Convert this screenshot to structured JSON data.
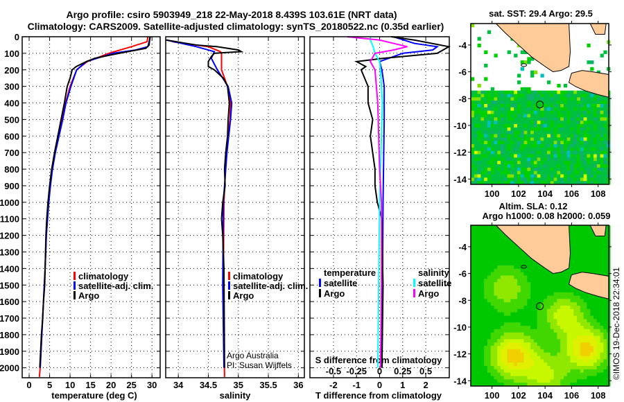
{
  "title": {
    "line1": "Argo profile: csiro 5903949_218 22-May-2018 8.439S 103.61E (NRT data)",
    "line2": "Climatology: CARS2009. Satellite-adjusted climatology: synTS_20180522.nc (0.35d earlier)"
  },
  "colors": {
    "climatology": "#ff0000",
    "satellite": "#0000ff",
    "argo": "#000000",
    "sat_salinity": "#00ffff",
    "argo_salinity": "#ff00ff",
    "land": "#ffcc99"
  },
  "credits": {
    "line1": "Argo Australia",
    "line2": "PI: Susan Wijffels",
    "imos": "©IMOS 19-Dec-2018 22:34:01"
  },
  "chart_data": [
    {
      "type": "line",
      "name": "temperature-profile",
      "xlabel": "temperature (deg C)",
      "ylabel": "depth",
      "xlim": [
        -1.7,
        32
      ],
      "ylim": [
        0,
        2060
      ],
      "xticks": [
        0,
        5,
        10,
        15,
        20,
        25,
        30
      ],
      "yticks": [
        0,
        100,
        200,
        300,
        400,
        500,
        600,
        700,
        800,
        900,
        1000,
        1100,
        1200,
        1300,
        1400,
        1500,
        1600,
        1700,
        1800,
        1900,
        2000
      ],
      "grid": true,
      "legend": [
        "climatology",
        "satellite-adj. clim.",
        "Argo"
      ],
      "series": [
        {
          "name": "climatology",
          "color": "#ff0000",
          "depth": [
            0,
            30,
            60,
            100,
            150,
            200,
            300,
            400,
            500,
            600,
            700,
            800,
            900,
            1000,
            1200,
            1400,
            1600,
            1800,
            2000,
            2055
          ],
          "values": [
            29,
            28.8,
            25,
            19.5,
            14.2,
            11.6,
            10,
            8.9,
            8,
            7.1,
            6.3,
            5.6,
            5.1,
            4.7,
            4.2,
            3.9,
            3.5,
            3.1,
            2.7,
            2.5
          ]
        },
        {
          "name": "satellite-adj. clim.",
          "color": "#0000ff",
          "depth": [
            0,
            60,
            80,
            100,
            150,
            200,
            300,
            400,
            500,
            600,
            700,
            800,
            900,
            1000,
            1200,
            1400,
            1600,
            1800,
            2000
          ],
          "values": [
            29.6,
            29,
            26,
            20.5,
            14,
            11.6,
            10.2,
            9,
            8.2,
            7.3,
            6.4,
            5.7,
            5.2,
            4.8,
            4.2,
            3.9,
            3.5,
            3.1,
            2.7
          ]
        },
        {
          "name": "Argo",
          "color": "#000000",
          "depth": [
            0,
            50,
            70,
            100,
            130,
            150,
            180,
            200,
            250,
            300,
            400,
            500,
            600,
            700,
            800,
            900,
            1000,
            1100,
            1200,
            1300,
            1400,
            1500,
            1600,
            1700,
            1800,
            1900,
            2000
          ],
          "values": [
            29.5,
            29.3,
            28.5,
            22,
            16,
            14,
            11.5,
            10.5,
            10,
            9.3,
            8.6,
            7.8,
            7,
            6.2,
            5.5,
            5,
            4.6,
            4.3,
            4.1,
            4,
            3.9,
            3.8,
            3.5,
            3.3,
            3,
            2.8,
            2.6
          ]
        }
      ]
    },
    {
      "type": "line",
      "name": "salinity-profile",
      "xlabel": "salinity",
      "ylabel": "depth",
      "xlim": [
        33.79,
        36.1
      ],
      "ylim": [
        0,
        2060
      ],
      "xticks": [
        34,
        34.5,
        35,
        35.5,
        36
      ],
      "grid": true,
      "legend": [
        "climatology",
        "satellite-adj. clim.",
        "Argo"
      ],
      "series": [
        {
          "name": "climatology",
          "color": "#ff0000",
          "depth": [
            30,
            60,
            90,
            100,
            200,
            300,
            400,
            500,
            700,
            1000,
            1500,
            2055
          ],
          "values": [
            33.9,
            34.5,
            34.7,
            34.72,
            34.72,
            34.82,
            34.87,
            34.86,
            34.8,
            34.76,
            34.75,
            34.77
          ]
        },
        {
          "name": "satellite-adj. clim.",
          "color": "#0000ff",
          "depth": [
            20,
            60,
            90,
            130,
            200,
            300,
            400,
            500,
            700,
            1000,
            1500,
            2000
          ],
          "values": [
            33.8,
            34.3,
            34.6,
            34.55,
            34.65,
            34.83,
            34.89,
            34.87,
            34.81,
            34.75,
            34.74,
            34.76
          ]
        },
        {
          "name": "Argo",
          "color": "#000000",
          "depth": [
            20,
            50,
            60,
            80,
            90,
            100,
            120,
            150,
            180,
            200,
            250,
            300,
            400,
            500,
            600,
            700,
            800,
            900,
            1000,
            1100,
            1200,
            1400,
            2000
          ],
          "values": [
            33.8,
            34.3,
            34.65,
            35,
            35.05,
            34.6,
            34.55,
            34.5,
            34.5,
            34.6,
            34.75,
            34.82,
            34.85,
            34.83,
            34.82,
            34.79,
            34.77,
            34.78,
            34.74,
            34.72,
            34.74,
            34.76,
            34.77
          ]
        }
      ]
    },
    {
      "type": "line",
      "name": "difference-profile",
      "xlabel": "T difference from climatology",
      "x2label": "S difference from climatology",
      "xlim": [
        -3.02,
        3.02
      ],
      "x2lim": [
        -0.755,
        0.755
      ],
      "ylim": [
        0,
        2060
      ],
      "xticks": [
        -2,
        -1,
        0,
        1,
        2
      ],
      "x2ticks": [
        "-0.5",
        "-0.25",
        "0",
        "0.25",
        "0.5"
      ],
      "grid": true,
      "legend": {
        "temperature_title": "temperature",
        "salinity_title": "salinity",
        "satellite": "satellite",
        "argo": "Argo"
      },
      "series": [
        {
          "name": "T satellite",
          "color": "#0000ff",
          "axis": "T",
          "depth": [
            0,
            40,
            60,
            80,
            100,
            150,
            200,
            300,
            500,
            1000,
            2000
          ],
          "values": [
            0.6,
            1.5,
            2.5,
            2.3,
            1,
            0,
            0.1,
            0.2,
            0.2,
            0.15,
            0.1
          ]
        },
        {
          "name": "T Argo",
          "color": "#000000",
          "axis": "T",
          "depth": [
            0,
            20,
            60,
            100,
            130,
            150,
            180,
            200,
            300,
            400,
            500,
            600,
            700,
            800,
            900,
            1000,
            1100,
            1200,
            1500,
            2000
          ],
          "values": [
            0.5,
            1.5,
            3,
            2.5,
            0.2,
            -1,
            -0.6,
            -0.8,
            -0.5,
            -0.5,
            -0.3,
            -0.4,
            -0.3,
            -0.2,
            -0.2,
            -0.1,
            0.1,
            0.1,
            0.15,
            0.1
          ]
        },
        {
          "name": "S satellite",
          "color": "#00ffff",
          "axis": "S",
          "depth": [
            0,
            20,
            60,
            100,
            150,
            200,
            400,
            1000,
            2000
          ],
          "values": [
            -0.1,
            -0.1,
            -0.07,
            -0.05,
            0,
            0.01,
            0.03,
            0,
            -0.02
          ]
        },
        {
          "name": "S Argo",
          "color": "#ff00ff",
          "axis": "S",
          "depth": [
            0,
            20,
            40,
            60,
            80,
            100,
            150,
            200,
            400,
            800,
            1000,
            1500,
            2000
          ],
          "values": [
            -0.35,
            0,
            0.15,
            0.3,
            0.15,
            -0.05,
            -0.1,
            -0.05,
            -0.02,
            0,
            0.02,
            0.02,
            0.01
          ]
        }
      ]
    },
    {
      "type": "heatmap",
      "name": "sst-map",
      "title": "sat. SST: 29.4 Argo: 29.5",
      "xlim": [
        98.4,
        108.8
      ],
      "ylim": [
        -14.4,
        -2.4
      ],
      "xticks": [
        100,
        102,
        104,
        106,
        108
      ],
      "yticks": [
        -4,
        -6,
        -8,
        -10,
        -12,
        -14
      ],
      "argo_position": [
        103.61,
        -8.439
      ]
    },
    {
      "type": "heatmap",
      "name": "sla-map",
      "title": "Altim. SLA: 0.12",
      "subtitle": "Argo h1000: 0.08 h2000: 0.059",
      "xlim": [
        98.4,
        108.8
      ],
      "ylim": [
        -14.4,
        -2.4
      ],
      "xticks": [
        100,
        102,
        104,
        106,
        108
      ],
      "yticks": [
        -4,
        -6,
        -8,
        -10,
        -12,
        -14
      ],
      "argo_position": [
        103.61,
        -8.439
      ]
    }
  ]
}
